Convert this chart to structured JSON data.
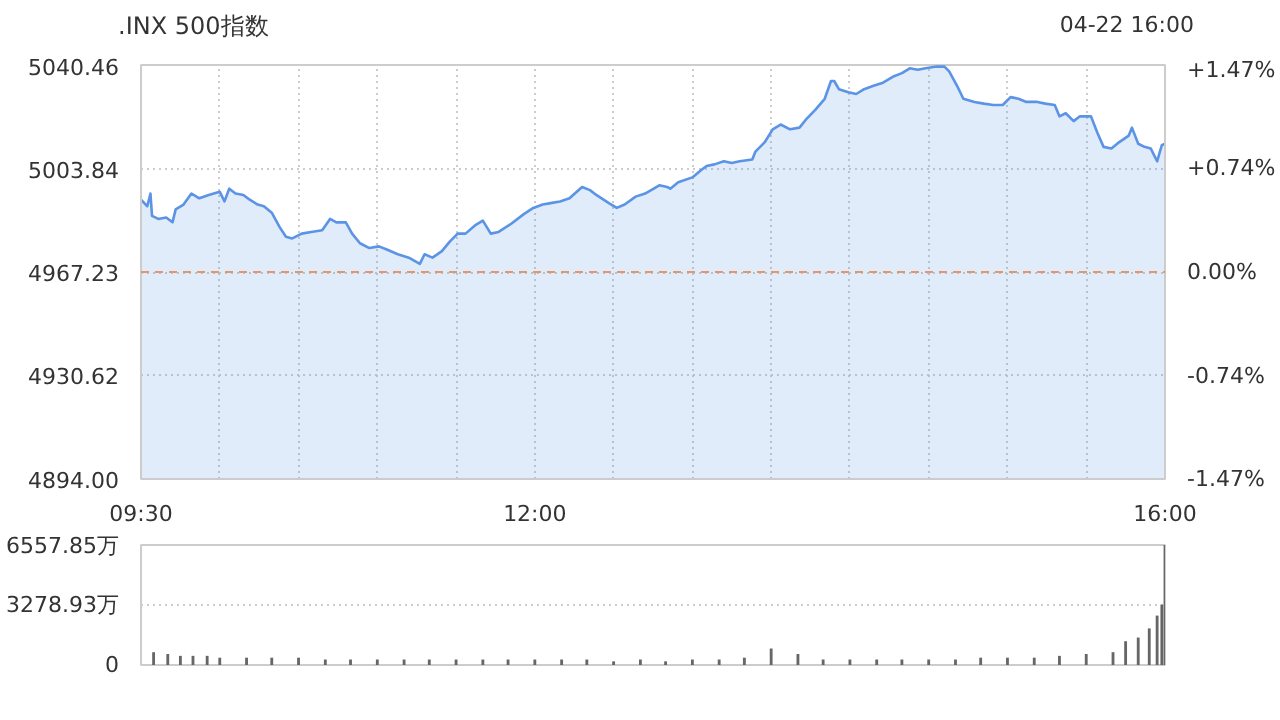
{
  "chart_data": [
    {
      "type": "area",
      "title": ".INX 500指数",
      "annotations": [
        "04-22 16:00"
      ],
      "x": [
        9.5,
        9.54,
        9.56,
        9.57,
        9.61,
        9.66,
        9.7,
        9.72,
        9.77,
        9.82,
        9.87,
        9.93,
        10.0,
        10.03,
        10.06,
        10.1,
        10.15,
        10.19,
        10.24,
        10.28,
        10.33,
        10.38,
        10.42,
        10.46,
        10.52,
        10.58,
        10.65,
        10.7,
        10.74,
        10.8,
        10.84,
        10.89,
        10.95,
        11.01,
        11.06,
        11.13,
        11.2,
        11.27,
        11.3,
        11.35,
        11.41,
        11.46,
        11.51,
        11.56,
        11.62,
        11.67,
        11.72,
        11.77,
        11.85,
        11.93,
        11.99,
        12.05,
        12.1,
        12.16,
        12.22,
        12.3,
        12.35,
        12.39,
        12.47,
        12.52,
        12.57,
        12.64,
        12.7,
        12.79,
        12.84,
        12.86,
        12.91,
        13.0,
        13.06,
        13.09,
        13.14,
        13.2,
        13.25,
        13.3,
        13.38,
        13.4,
        13.46,
        13.51,
        13.56,
        13.62,
        13.68,
        13.72,
        13.78,
        13.84,
        13.88,
        13.9,
        13.93,
        13.99,
        14.04,
        14.09,
        14.15,
        14.21,
        14.28,
        14.33,
        14.38,
        14.43,
        14.48,
        14.55,
        14.6,
        14.63,
        14.68,
        14.72,
        14.79,
        14.85,
        14.91,
        14.97,
        15.02,
        15.07,
        15.12,
        15.19,
        15.24,
        15.3,
        15.33,
        15.37,
        15.42,
        15.46,
        15.53,
        15.57,
        15.61,
        15.66,
        15.71,
        15.77,
        15.79,
        15.83,
        15.87,
        15.91,
        15.95,
        15.98,
        16.0
      ],
      "series": [
        {
          "color": "#5b93e6",
          "values": [
            4992.8,
            4990.5,
            4995.0,
            4987.1,
            4986.0,
            4986.5,
            4984.8,
            4989.4,
            4991.1,
            4995.0,
            4993.3,
            4994.5,
            4995.6,
            4992.2,
            4996.7,
            4995.0,
            4994.5,
            4992.8,
            4991.1,
            4990.5,
            4988.2,
            4983.1,
            4979.7,
            4979.1,
            4980.8,
            4981.4,
            4982.0,
            4986.0,
            4984.8,
            4984.8,
            4980.8,
            4977.4,
            4975.7,
            4976.3,
            4975.2,
            4973.5,
            4972.3,
            4970.1,
            4973.5,
            4972.3,
            4974.6,
            4978.0,
            4980.8,
            4980.8,
            4983.7,
            4985.4,
            4980.8,
            4981.4,
            4984.3,
            4987.7,
            4989.9,
            4991.1,
            4991.6,
            4992.2,
            4993.3,
            4997.3,
            4996.2,
            4994.5,
            4991.6,
            4989.9,
            4991.1,
            4993.9,
            4995.0,
            4997.9,
            4997.3,
            4996.7,
            4999.0,
            5000.7,
            5003.5,
            5004.7,
            5005.3,
            5006.4,
            5005.8,
            5006.4,
            5007.0,
            5009.8,
            5013.2,
            5017.7,
            5019.4,
            5017.7,
            5018.3,
            5021.1,
            5024.6,
            5028.5,
            5034.8,
            5034.8,
            5031.9,
            5030.8,
            5030.2,
            5031.9,
            5033.1,
            5034.2,
            5036.5,
            5037.6,
            5039.3,
            5038.8,
            5039.3,
            5039.9,
            5039.9,
            5038.2,
            5033.1,
            5028.5,
            5027.4,
            5026.8,
            5026.3,
            5026.3,
            5029.1,
            5028.5,
            5027.4,
            5027.4,
            5026.8,
            5026.3,
            5022.3,
            5023.4,
            5020.6,
            5022.3,
            5022.3,
            5016.6,
            5011.5,
            5010.9,
            5013.2,
            5015.5,
            5018.3,
            5012.6,
            5011.5,
            5010.9,
            5006.4,
            5012.1,
            5012.6
          ]
        }
      ],
      "xlim": [
        9.5,
        16
      ],
      "xticks": [
        {
          "value": 9.5,
          "label": "09:30"
        },
        {
          "value": 10,
          "label": null
        },
        {
          "value": 10.5,
          "label": null
        },
        {
          "value": 11,
          "label": null
        },
        {
          "value": 11.5,
          "label": null
        },
        {
          "value": 12,
          "label": "12:00"
        },
        {
          "value": 12.5,
          "label": null
        },
        {
          "value": 13,
          "label": null
        },
        {
          "value": 13.5,
          "label": null
        },
        {
          "value": 14,
          "label": null
        },
        {
          "value": 14.5,
          "label": null
        },
        {
          "value": 15,
          "label": null
        },
        {
          "value": 15.5,
          "label": null
        },
        {
          "value": 16,
          "label": "16:00"
        }
      ],
      "ylim": [
        4894.0,
        5040.46
      ],
      "yticks": [
        {
          "value": 4894.0,
          "label": "4894.00"
        },
        4930.62,
        4967.23,
        5003.84,
        5040.46
      ],
      "y2lim": [
        -1.47,
        1.47
      ],
      "y2ticks": [
        {
          "value": -1.47,
          "label": "-1.47%"
        },
        {
          "value": -0.74,
          "label": "-0.74%"
        },
        {
          "value": 0,
          "label": "0.00%"
        },
        {
          "value": 0.74,
          "label": "+0.74%"
        },
        {
          "value": 1.47,
          "label": "+1.47%"
        }
      ],
      "ref_lines": [
        {
          "axis": "y",
          "value": 4967.23,
          "color": "#e8956b",
          "line_style": "dashed"
        }
      ],
      "grid": true
    },
    {
      "type": "bar",
      "x": [
        9.58,
        9.67,
        9.75,
        9.83,
        9.92,
        10.0,
        10.17,
        10.33,
        10.5,
        10.67,
        10.83,
        11.0,
        11.17,
        11.33,
        11.5,
        11.67,
        11.83,
        12.0,
        12.17,
        12.33,
        12.5,
        12.67,
        12.83,
        13.0,
        13.17,
        13.33,
        13.5,
        13.67,
        13.83,
        14.0,
        14.17,
        14.33,
        14.5,
        14.67,
        14.83,
        15.0,
        15.17,
        15.33,
        15.5,
        15.67,
        15.75,
        15.83,
        15.9,
        15.95,
        15.98,
        16.0
      ],
      "series": [
        {
          "color": "#666666",
          "values": [
            700,
            600,
            500,
            500,
            500,
            400,
            400,
            400,
            400,
            300,
            300,
            300,
            300,
            300,
            300,
            300,
            300,
            300,
            300,
            300,
            200,
            300,
            200,
            300,
            300,
            400,
            900,
            600,
            300,
            300,
            300,
            300,
            300,
            300,
            400,
            400,
            400,
            500,
            600,
            700,
            1300,
            1500,
            2000,
            2700,
            3300,
            6557.85
          ]
        }
      ],
      "xlim": [
        9.5,
        16
      ],
      "ylim": [
        0,
        6557.85
      ],
      "yticks": [
        0,
        {
          "value": 3278.93,
          "label": "3278.93万"
        },
        {
          "value": 6557.85,
          "label": "6557.85万"
        }
      ],
      "tick_labels": "y",
      "grid": "y"
    }
  ]
}
